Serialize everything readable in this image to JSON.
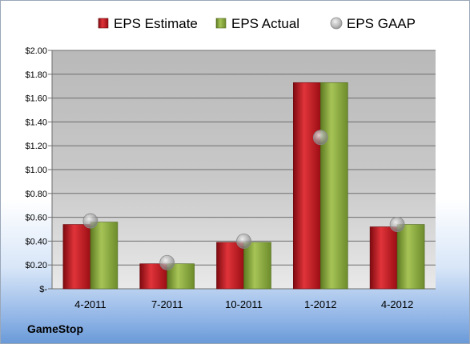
{
  "company": "GameStop",
  "chart_data": {
    "type": "bar",
    "categories": [
      "4-2011",
      "7-2011",
      "10-2011",
      "1-2012",
      "4-2012"
    ],
    "series": [
      {
        "name": "EPS Estimate",
        "kind": "bar",
        "color": "#c0141c",
        "values": [
          0.54,
          0.21,
          0.39,
          1.73,
          0.52
        ]
      },
      {
        "name": "EPS Actual",
        "kind": "bar",
        "color": "#8aaa3c",
        "values": [
          0.56,
          0.21,
          0.39,
          1.73,
          0.54
        ]
      },
      {
        "name": "EPS GAAP",
        "kind": "marker",
        "color": "#a0a0a0",
        "values": [
          0.57,
          0.22,
          0.4,
          1.27,
          0.54
        ]
      }
    ],
    "y_ticks": [
      "$-",
      "$0.20",
      "$0.40",
      "$0.60",
      "$0.80",
      "$1.00",
      "$1.20",
      "$1.40",
      "$1.60",
      "$1.80",
      "$2.00"
    ],
    "ylim": [
      0,
      2
    ],
    "grid": true,
    "legend_position": "top"
  }
}
